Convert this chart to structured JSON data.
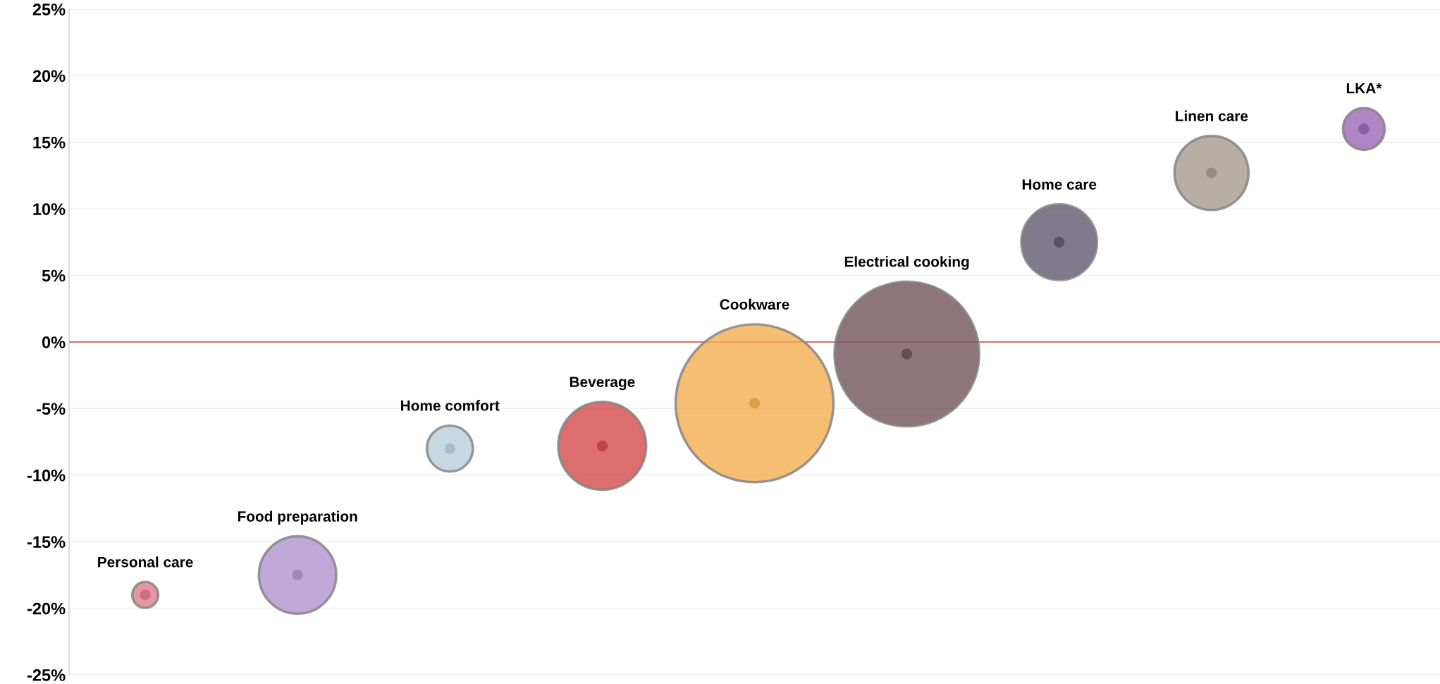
{
  "chart_data": {
    "type": "bubble",
    "categories": [
      null,
      null,
      null,
      null,
      null,
      null,
      null,
      null,
      null
    ],
    "series": [
      {
        "name": "Personal care",
        "color": "#e07a8e",
        "values": [
          -19.0,
          null,
          null,
          null,
          null,
          null,
          null,
          null,
          null
        ],
        "sizes": [
          0.027,
          null,
          null,
          null,
          null,
          null,
          null,
          null,
          null
        ]
      },
      {
        "name": "Food preparation",
        "color": "#b094d0",
        "values": [
          null,
          -17.5,
          null,
          null,
          null,
          null,
          null,
          null,
          null
        ],
        "sizes": [
          null,
          0.24,
          null,
          null,
          null,
          null,
          null,
          null,
          null
        ]
      },
      {
        "name": "Home comfort",
        "color": "#b8cfdc",
        "values": [
          null,
          null,
          -8.0,
          null,
          null,
          null,
          null,
          null,
          null
        ],
        "sizes": [
          null,
          null,
          0.085,
          null,
          null,
          null,
          null,
          null,
          null
        ]
      },
      {
        "name": "Beverage",
        "color": "#d34a4a",
        "values": [
          null,
          null,
          null,
          -7.8,
          null,
          null,
          null,
          null,
          null
        ],
        "sizes": [
          null,
          null,
          null,
          0.31,
          null,
          null,
          null,
          null,
          null
        ]
      },
      {
        "name": "Cookware",
        "color": "#f4ae50",
        "values": [
          null,
          null,
          null,
          null,
          -4.6,
          null,
          null,
          null,
          null
        ],
        "sizes": [
          null,
          null,
          null,
          null,
          1,
          null,
          null,
          null,
          null
        ]
      },
      {
        "name": "Electrical cooking",
        "color": "#72525a",
        "values": [
          null,
          null,
          null,
          null,
          null,
          -0.9,
          null,
          null,
          null
        ],
        "sizes": [
          null,
          null,
          null,
          null,
          null,
          0.84,
          null,
          null,
          null
        ]
      },
      {
        "name": "Home care",
        "color": "#625970",
        "values": [
          null,
          null,
          null,
          null,
          null,
          null,
          7.5,
          null,
          null
        ],
        "sizes": [
          null,
          null,
          null,
          null,
          null,
          null,
          0.23,
          null,
          null
        ]
      },
      {
        "name": "Linen care",
        "color": "#a59a90",
        "values": [
          null,
          null,
          null,
          null,
          null,
          null,
          null,
          12.7,
          null
        ],
        "sizes": [
          null,
          null,
          null,
          null,
          null,
          null,
          null,
          0.22,
          null
        ]
      },
      {
        "name": "LKA*",
        "color": "#9a68b8",
        "values": [
          null,
          null,
          null,
          null,
          null,
          null,
          null,
          null,
          16.0
        ],
        "sizes": [
          null,
          null,
          null,
          null,
          null,
          null,
          null,
          null,
          0.07
        ]
      }
    ],
    "ylim": [
      -25,
      25
    ],
    "yticks": [
      {
        "value": -25,
        "label": "-25%"
      },
      {
        "value": -20,
        "label": "-20%"
      },
      {
        "value": -15,
        "label": "-15%"
      },
      {
        "value": -10,
        "label": "-10%"
      },
      {
        "value": -5,
        "label": "-5%"
      },
      {
        "value": 0,
        "label": "0%"
      },
      {
        "value": 5,
        "label": "5%"
      },
      {
        "value": 10,
        "label": "10%"
      },
      {
        "value": 15,
        "label": "15%"
      },
      {
        "value": 20,
        "label": "20%"
      },
      {
        "value": 25,
        "label": "25%"
      }
    ],
    "grid": "y",
    "ref_lines": [
      {
        "axis": "y",
        "value": 0,
        "color": "#d04040"
      }
    ]
  }
}
